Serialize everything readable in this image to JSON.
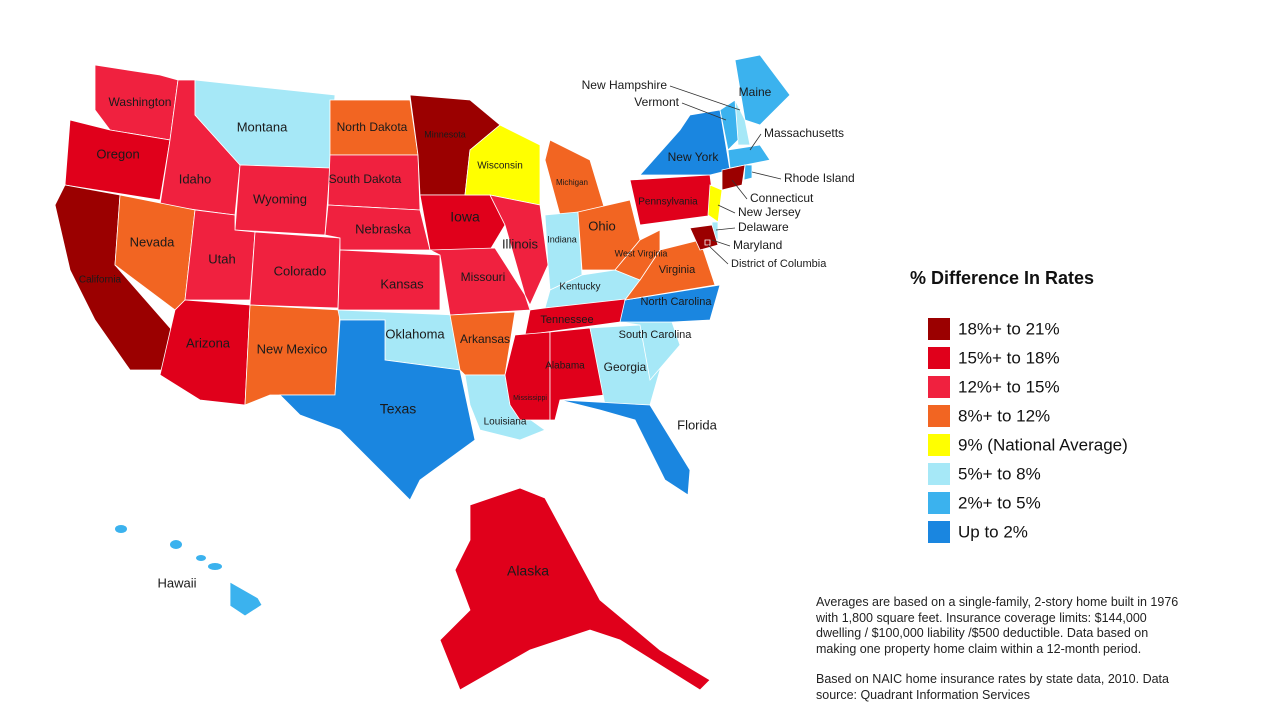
{
  "legend": {
    "title": "% Difference In Rates",
    "items": [
      {
        "label": "18%+ to 21%",
        "color": "#9b0000"
      },
      {
        "label": "15%+ to 18%",
        "color": "#e0001b"
      },
      {
        "label": "12%+ to 15%",
        "color": "#f0213f"
      },
      {
        "label": "8%+ to 12%",
        "color": "#f26522"
      },
      {
        "label": "9% (National Average)",
        "color": "#ffff00"
      },
      {
        "label": "5%+ to 8%",
        "color": "#a6e8f7"
      },
      {
        "label": "2%+ to 5%",
        "color": "#3bb2ee"
      },
      {
        "label": "Up to 2%",
        "color": "#1a86e0"
      }
    ]
  },
  "states": [
    {
      "name": "Washington",
      "color": "#f0213f"
    },
    {
      "name": "Oregon",
      "color": "#e0001b"
    },
    {
      "name": "California",
      "color": "#9b0000"
    },
    {
      "name": "Idaho",
      "color": "#f0213f"
    },
    {
      "name": "Nevada",
      "color": "#f26522"
    },
    {
      "name": "Montana",
      "color": "#a6e8f7"
    },
    {
      "name": "Wyoming",
      "color": "#f0213f"
    },
    {
      "name": "Utah",
      "color": "#f0213f"
    },
    {
      "name": "Colorado",
      "color": "#f0213f"
    },
    {
      "name": "Arizona",
      "color": "#e0001b"
    },
    {
      "name": "New Mexico",
      "color": "#f26522"
    },
    {
      "name": "North Dakota",
      "color": "#f26522"
    },
    {
      "name": "South Dakota",
      "color": "#f0213f"
    },
    {
      "name": "Nebraska",
      "color": "#f0213f"
    },
    {
      "name": "Kansas",
      "color": "#f0213f"
    },
    {
      "name": "Oklahoma",
      "color": "#a6e8f7"
    },
    {
      "name": "Texas",
      "color": "#1a86e0"
    },
    {
      "name": "Minnesota",
      "color": "#9b0000"
    },
    {
      "name": "Iowa",
      "color": "#e0001b"
    },
    {
      "name": "Missouri",
      "color": "#f0213f"
    },
    {
      "name": "Arkansas",
      "color": "#f26522"
    },
    {
      "name": "Louisiana",
      "color": "#a6e8f7"
    },
    {
      "name": "Wisconsin",
      "color": "#ffff00"
    },
    {
      "name": "Illinois",
      "color": "#f0213f"
    },
    {
      "name": "Michigan",
      "color": "#f26522"
    },
    {
      "name": "Indiana",
      "color": "#a6e8f7"
    },
    {
      "name": "Ohio",
      "color": "#f26522"
    },
    {
      "name": "Kentucky",
      "color": "#a6e8f7"
    },
    {
      "name": "Tennessee",
      "color": "#e0001b"
    },
    {
      "name": "Mississippi",
      "color": "#e0001b"
    },
    {
      "name": "Alabama",
      "color": "#e0001b"
    },
    {
      "name": "Georgia",
      "color": "#a6e8f7"
    },
    {
      "name": "Florida",
      "color": "#1a86e0"
    },
    {
      "name": "South Carolina",
      "color": "#a6e8f7"
    },
    {
      "name": "North Carolina",
      "color": "#1a86e0"
    },
    {
      "name": "Virginia",
      "color": "#f26522"
    },
    {
      "name": "West Virginia",
      "color": "#f26522"
    },
    {
      "name": "Pennsylvania",
      "color": "#e0001b"
    },
    {
      "name": "New York",
      "color": "#1a86e0"
    },
    {
      "name": "Maine",
      "color": "#3bb2ee"
    },
    {
      "name": "New Hampshire",
      "color": "#a6e8f7"
    },
    {
      "name": "Vermont",
      "color": "#3bb2ee"
    },
    {
      "name": "Massachusetts",
      "color": "#3bb2ee"
    },
    {
      "name": "Rhode Island",
      "color": "#3bb2ee"
    },
    {
      "name": "Connecticut",
      "color": "#9b0000"
    },
    {
      "name": "New Jersey",
      "color": "#ffff00"
    },
    {
      "name": "Delaware",
      "color": "#a6e8f7"
    },
    {
      "name": "Maryland",
      "color": "#9b0000"
    },
    {
      "name": "District of Columbia",
      "color": "#9b0000"
    },
    {
      "name": "Alaska",
      "color": "#e0001b"
    },
    {
      "name": "Hawaii",
      "color": "#3bb2ee"
    }
  ],
  "notes": [
    "Averages are based on a single-family, 2-story home built in 1976 with 1,800 square feet. Insurance coverage limits: $144,000 dwelling / $100,000 liability /$500 deductible. Data based on making one property home claim within a 12-month period.",
    "Based on NAIC home insurance rates by state data, 2010. Data source: Quadrant Information Services"
  ]
}
